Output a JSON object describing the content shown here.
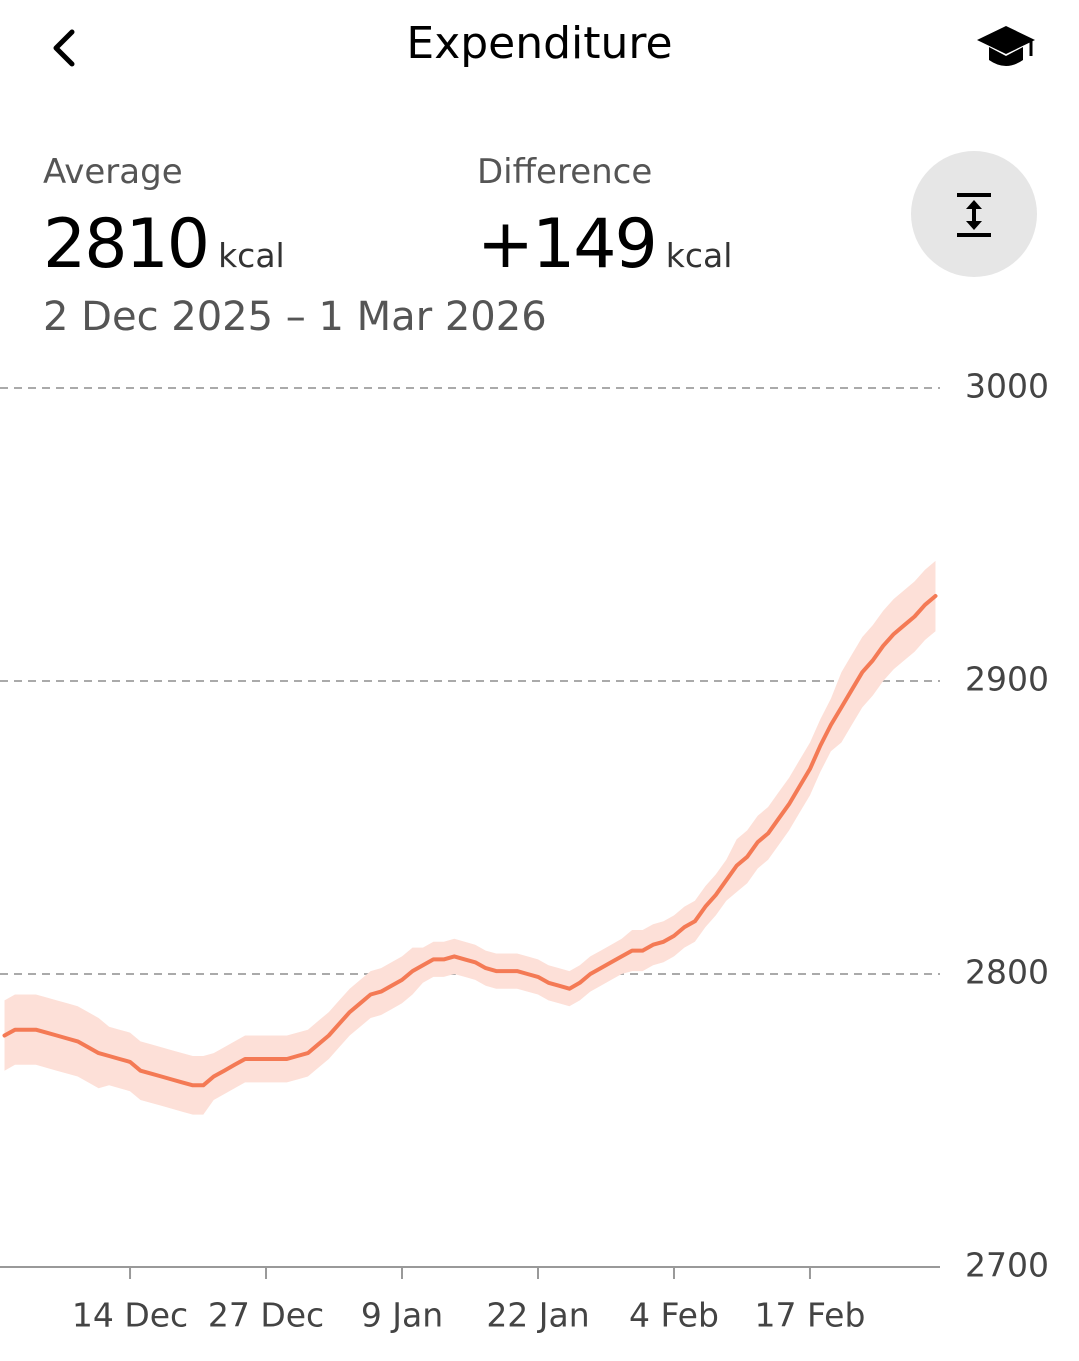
{
  "header": {
    "title": "Expenditure"
  },
  "stats": {
    "average": {
      "label": "Average",
      "value": "2810",
      "unit": "kcal"
    },
    "difference": {
      "label": "Difference",
      "value": "+149",
      "unit": "kcal"
    },
    "date_range": "2 Dec 2025 – 1 Mar 2026"
  },
  "chart_data": {
    "type": "line",
    "x": [
      "2 Dec",
      "3 Dec",
      "4 Dec",
      "5 Dec",
      "6 Dec",
      "7 Dec",
      "8 Dec",
      "9 Dec",
      "10 Dec",
      "11 Dec",
      "12 Dec",
      "13 Dec",
      "14 Dec",
      "15 Dec",
      "16 Dec",
      "17 Dec",
      "18 Dec",
      "19 Dec",
      "20 Dec",
      "21 Dec",
      "22 Dec",
      "23 Dec",
      "24 Dec",
      "25 Dec",
      "26 Dec",
      "27 Dec",
      "28 Dec",
      "29 Dec",
      "30 Dec",
      "31 Dec",
      "1 Jan",
      "2 Jan",
      "3 Jan",
      "4 Jan",
      "5 Jan",
      "6 Jan",
      "7 Jan",
      "8 Jan",
      "9 Jan",
      "10 Jan",
      "11 Jan",
      "12 Jan",
      "13 Jan",
      "14 Jan",
      "15 Jan",
      "16 Jan",
      "17 Jan",
      "18 Jan",
      "19 Jan",
      "20 Jan",
      "21 Jan",
      "22 Jan",
      "23 Jan",
      "24 Jan",
      "25 Jan",
      "26 Jan",
      "27 Jan",
      "28 Jan",
      "29 Jan",
      "30 Jan",
      "31 Jan",
      "1 Feb",
      "2 Feb",
      "3 Feb",
      "4 Feb",
      "5 Feb",
      "6 Feb",
      "7 Feb",
      "8 Feb",
      "9 Feb",
      "10 Feb",
      "11 Feb",
      "12 Feb",
      "13 Feb",
      "14 Feb",
      "15 Feb",
      "16 Feb",
      "17 Feb",
      "18 Feb",
      "19 Feb",
      "20 Feb",
      "21 Feb",
      "22 Feb",
      "23 Feb",
      "24 Feb",
      "25 Feb",
      "26 Feb",
      "27 Feb",
      "28 Feb",
      "1 Mar"
    ],
    "values": [
      2779,
      2781,
      2781,
      2781,
      2780,
      2779,
      2778,
      2777,
      2775,
      2773,
      2772,
      2771,
      2770,
      2767,
      2766,
      2765,
      2764,
      2763,
      2762,
      2762,
      2765,
      2767,
      2769,
      2771,
      2771,
      2771,
      2771,
      2771,
      2772,
      2773,
      2776,
      2779,
      2783,
      2787,
      2790,
      2793,
      2794,
      2796,
      2798,
      2801,
      2803,
      2805,
      2805,
      2806,
      2805,
      2804,
      2802,
      2801,
      2801,
      2801,
      2800,
      2799,
      2797,
      2796,
      2795,
      2797,
      2800,
      2802,
      2804,
      2806,
      2808,
      2808,
      2810,
      2811,
      2813,
      2816,
      2818,
      2823,
      2827,
      2832,
      2837,
      2840,
      2845,
      2848,
      2853,
      2858,
      2864,
      2870,
      2878,
      2885,
      2891,
      2897,
      2903,
      2907,
      2912,
      2916,
      2919,
      2922,
      2926,
      2929
    ],
    "lower": [
      2767,
      2769,
      2769,
      2769,
      2768,
      2767,
      2766,
      2765,
      2763,
      2761,
      2762,
      2761,
      2760,
      2757,
      2756,
      2755,
      2754,
      2753,
      2752,
      2752,
      2757,
      2759,
      2761,
      2763,
      2763,
      2763,
      2763,
      2763,
      2764,
      2765,
      2768,
      2771,
      2775,
      2779,
      2782,
      2785,
      2786,
      2788,
      2790,
      2793,
      2797,
      2799,
      2799,
      2800,
      2799,
      2798,
      2796,
      2795,
      2795,
      2795,
      2794,
      2793,
      2791,
      2790,
      2789,
      2791,
      2794,
      2796,
      2798,
      2800,
      2801,
      2801,
      2803,
      2804,
      2806,
      2809,
      2811,
      2816,
      2820,
      2825,
      2828,
      2831,
      2836,
      2839,
      2844,
      2849,
      2855,
      2861,
      2869,
      2876,
      2879,
      2885,
      2891,
      2895,
      2900,
      2904,
      2907,
      2910,
      2914,
      2917
    ],
    "upper": [
      2791,
      2793,
      2793,
      2793,
      2792,
      2791,
      2790,
      2789,
      2787,
      2785,
      2782,
      2781,
      2780,
      2777,
      2776,
      2775,
      2774,
      2773,
      2772,
      2772,
      2773,
      2775,
      2777,
      2779,
      2779,
      2779,
      2779,
      2779,
      2780,
      2781,
      2784,
      2787,
      2791,
      2795,
      2798,
      2801,
      2802,
      2804,
      2806,
      2809,
      2809,
      2811,
      2811,
      2812,
      2811,
      2810,
      2808,
      2807,
      2807,
      2807,
      2806,
      2805,
      2803,
      2802,
      2801,
      2803,
      2806,
      2808,
      2810,
      2812,
      2815,
      2815,
      2817,
      2818,
      2820,
      2823,
      2825,
      2830,
      2834,
      2839,
      2846,
      2849,
      2854,
      2857,
      2862,
      2867,
      2873,
      2879,
      2887,
      2894,
      2903,
      2909,
      2915,
      2919,
      2924,
      2928,
      2931,
      2934,
      2938,
      2941
    ],
    "color": "#f47a55",
    "band_color": "#fde0d8",
    "ylim": [
      2700,
      3000
    ],
    "yticks": [
      2700,
      2800,
      2900,
      3000
    ],
    "xticks": [
      "14 Dec",
      "27 Dec",
      "9 Jan",
      "22 Jan",
      "4 Feb",
      "17 Feb"
    ],
    "grid": true
  }
}
